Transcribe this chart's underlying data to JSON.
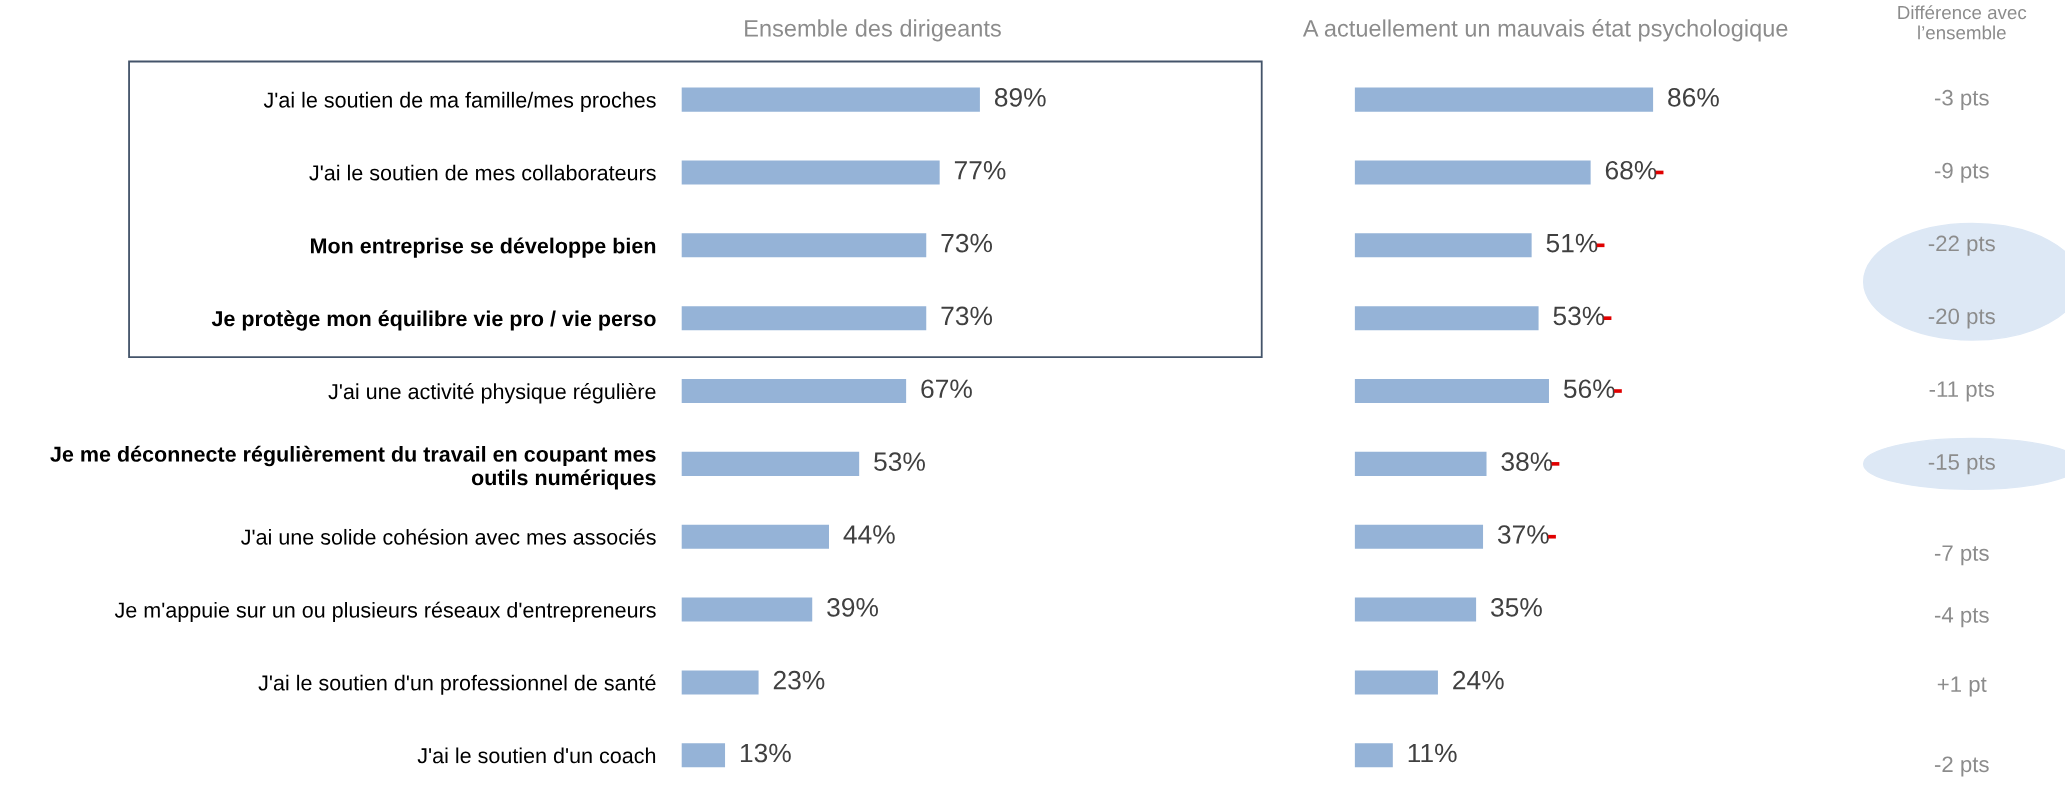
{
  "chart_data": [
    {
      "type": "bar",
      "orientation": "horizontal",
      "title": "Ensemble des dirigeants",
      "categories": [
        "J'ai le soutien de ma famille/mes proches",
        "J'ai le soutien de mes collaborateurs",
        "Mon entreprise se développe bien",
        "Je protège mon équilibre vie pro / vie perso",
        "J'ai une activité physique régulière",
        "Je me déconnecte régulièrement du travail en coupant mes outils numériques",
        "J'ai une solide cohésion avec mes associés",
        "Je m'appuie sur un ou plusieurs réseaux d'entrepreneurs",
        "J'ai le soutien d'un professionnel de santé",
        "J'ai le soutien d'un coach"
      ],
      "values": [
        89,
        77,
        73,
        73,
        67,
        53,
        44,
        39,
        23,
        13
      ],
      "value_labels": [
        "89%",
        "77%",
        "73%",
        "73%",
        "67%",
        "53%",
        "44%",
        "39%",
        "23%",
        "13%"
      ],
      "color": "#95b3d7"
    },
    {
      "type": "bar",
      "orientation": "horizontal",
      "title": "A actuellement un mauvais état psychologique",
      "categories": [
        "J'ai le soutien de ma famille/mes proches",
        "J'ai le soutien de mes collaborateurs",
        "Mon entreprise se développe bien",
        "Je protège mon équilibre vie pro / vie perso",
        "J'ai une activité physique régulière",
        "Je me déconnecte régulièrement du travail en coupant mes outils numériques",
        "J'ai une solide cohésion avec mes associés",
        "Je m'appuie sur un ou plusieurs réseaux d'entrepreneurs",
        "J'ai le soutien d'un professionnel de santé",
        "J'ai le soutien d'un coach"
      ],
      "values": [
        86,
        68,
        51,
        53,
        56,
        38,
        37,
        35,
        24,
        11
      ],
      "value_labels": [
        "86%",
        "68%",
        "51%",
        "53%",
        "56%",
        "38%",
        "37%",
        "35%",
        "24%",
        "11%"
      ],
      "color": "#95b3d7",
      "tick_labels": false,
      "annotations": [
        {
          "text": "-",
          "x": 68,
          "y": "J'ai le soutien de mes collaborateurs"
        },
        {
          "text": "-",
          "x": 51,
          "y": "Mon entreprise se développe bien"
        },
        {
          "text": "-",
          "x": 53,
          "y": "Je protège mon équilibre vie pro / vie perso"
        },
        {
          "text": "-",
          "x": 56,
          "y": "J'ai une activité physique régulière"
        },
        {
          "text": "-",
          "x": 38,
          "y": "Je me déconnecte régulièrement du travail en coupant mes outils numériques"
        },
        {
          "text": "-",
          "x": 37,
          "y": "J'ai une solide cohésion avec mes associés"
        }
      ]
    },
    {
      "type": "other",
      "title": "Différence avec l’ensemble",
      "annotations": [
        "-3 pts",
        "-9 pts",
        "-22 pts",
        "-20 pts",
        "-11 pts",
        "-15 pts",
        "-7 pts",
        "-4 pts",
        "+1 pt",
        "-2 pts"
      ]
    }
  ]
}
